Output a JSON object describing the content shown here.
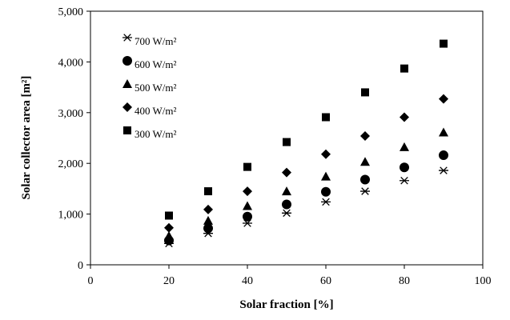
{
  "chart_data": {
    "type": "scatter",
    "title": "",
    "xlabel": "Solar fraction [%]",
    "ylabel": "Solar collector area [m²]",
    "xlim": [
      0,
      100
    ],
    "ylim": [
      0,
      5000
    ],
    "xticks": [
      0,
      20,
      40,
      60,
      80,
      100
    ],
    "yticks": [
      0,
      1000,
      2000,
      3000,
      4000,
      5000
    ],
    "xtick_labels": [
      "0",
      "20",
      "40",
      "60",
      "80",
      "100"
    ],
    "ytick_labels": [
      "0",
      "1,000",
      "2,000",
      "3,000",
      "4,000",
      "5,000"
    ],
    "grid": false,
    "legend_position": "top-left",
    "x": [
      20,
      30,
      40,
      50,
      60,
      70,
      80,
      90
    ],
    "series": [
      {
        "name": "700 W/m²",
        "marker": "asterisk",
        "values": [
          420,
          620,
          820,
          1020,
          1240,
          1450,
          1660,
          1860
        ]
      },
      {
        "name": "600 W/m²",
        "marker": "circle",
        "values": [
          480,
          720,
          950,
          1190,
          1440,
          1680,
          1920,
          2160
        ]
      },
      {
        "name": "500 W/m²",
        "marker": "triangle",
        "values": [
          570,
          870,
          1160,
          1450,
          1740,
          2030,
          2320,
          2610
        ]
      },
      {
        "name": "400 W/m²",
        "marker": "diamond",
        "values": [
          730,
          1090,
          1450,
          1820,
          2180,
          2540,
          2910,
          3270
        ]
      },
      {
        "name": "300 W/m²",
        "marker": "square",
        "values": [
          970,
          1450,
          1930,
          2420,
          2910,
          3400,
          3870,
          4360
        ]
      }
    ]
  }
}
